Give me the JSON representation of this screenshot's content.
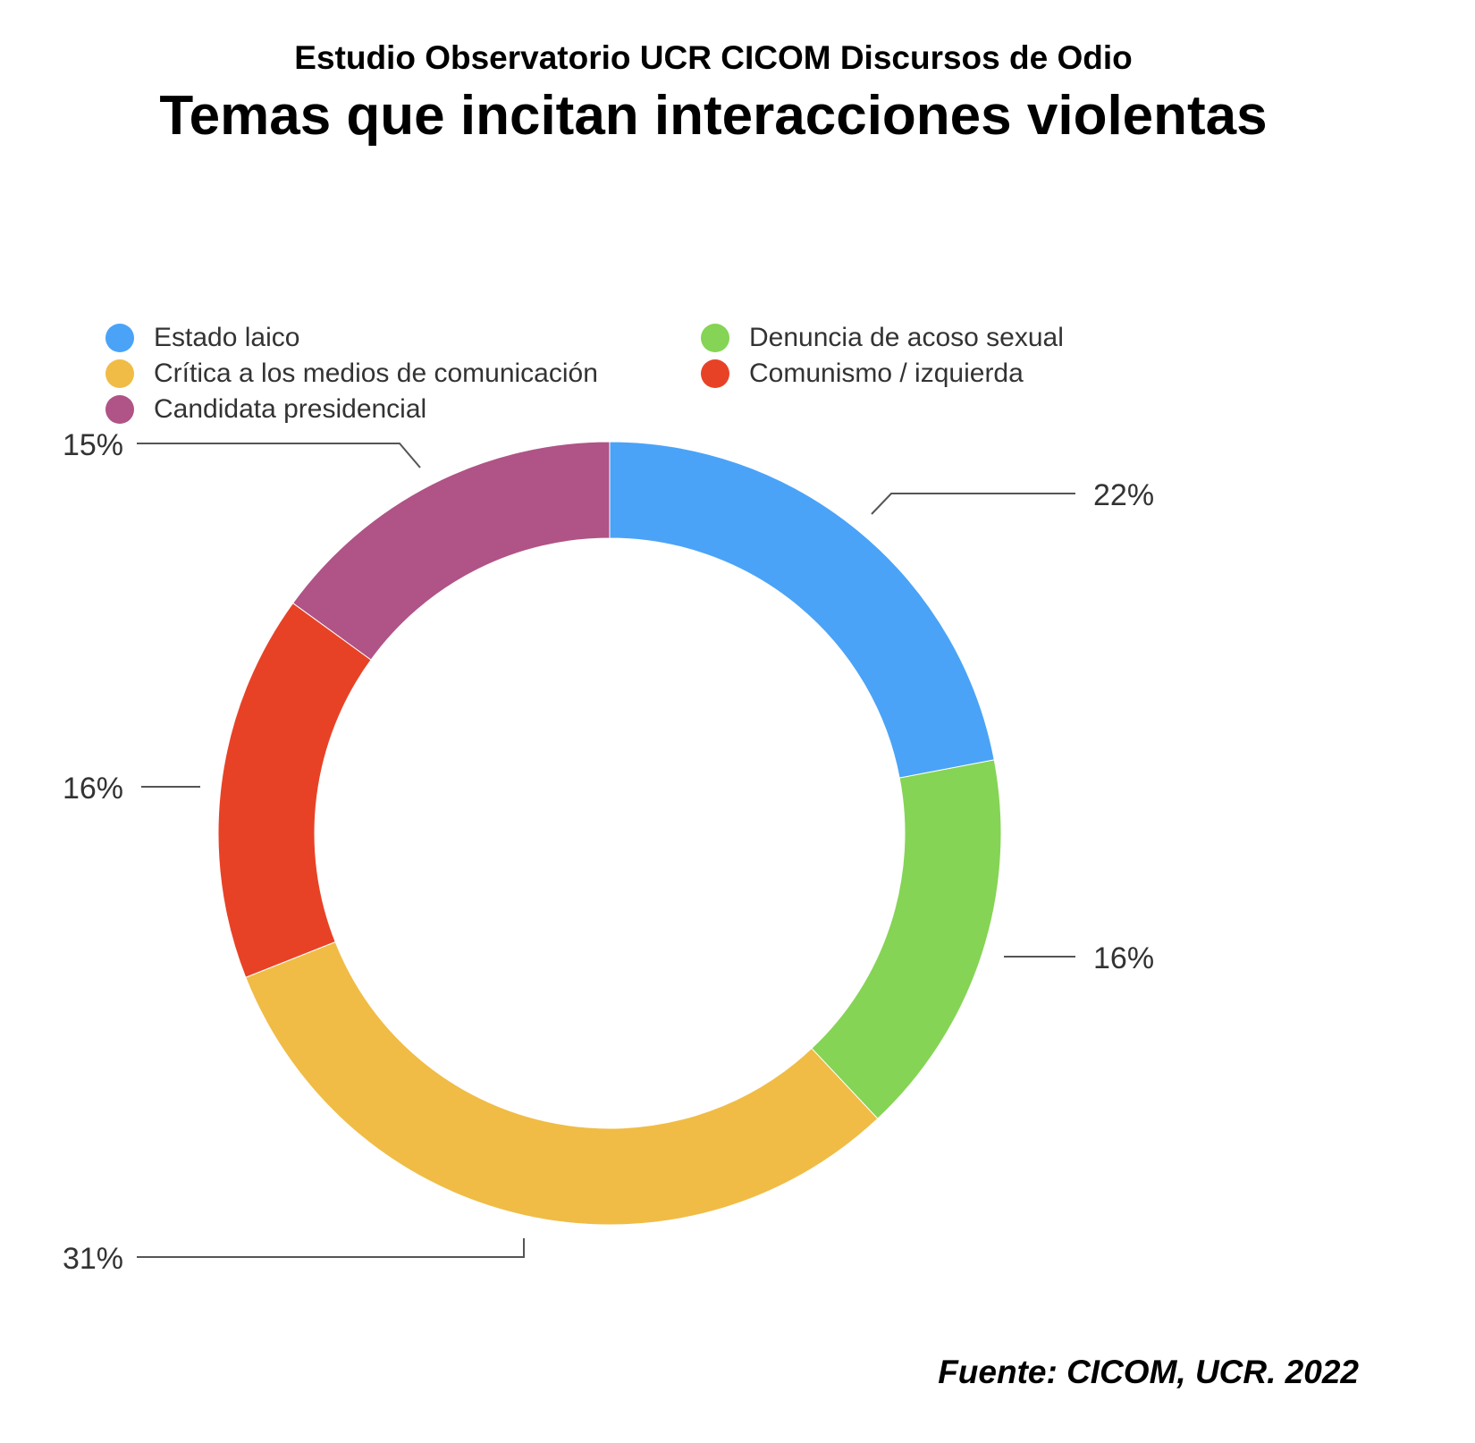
{
  "header": {
    "subtitle": "Estudio Observatorio UCR CICOM Discursos de Odio",
    "title": "Temas que incitan interacciones violentas"
  },
  "footer": {
    "source": "Fuente: CICOM, UCR. 2022"
  },
  "chart_data": {
    "type": "pie",
    "variant": "donut",
    "title": "Temas que incitan interacciones violentas",
    "subtitle": "Estudio Observatorio UCR CICOM Discursos de Odio",
    "legend_position": "top",
    "labels": [
      "Estado laico",
      "Denuncia de acoso sexual",
      "Crítica a los medios de comunicación",
      "Comunismo / izquierda",
      "Candidata presidencial"
    ],
    "values": [
      22,
      16,
      31,
      16,
      15
    ],
    "value_labels": [
      "22%",
      "16%",
      "31%",
      "16%",
      "15%"
    ],
    "colors": [
      "#4aa3f7",
      "#85d455",
      "#f0bc45",
      "#e84226",
      "#b05386"
    ],
    "legend_order": [
      "Estado laico",
      "Denuncia de acoso sexual",
      "Crítica a los medios de comunicación",
      "Comunismo / izquierda",
      "Candidata presidencial"
    ]
  }
}
